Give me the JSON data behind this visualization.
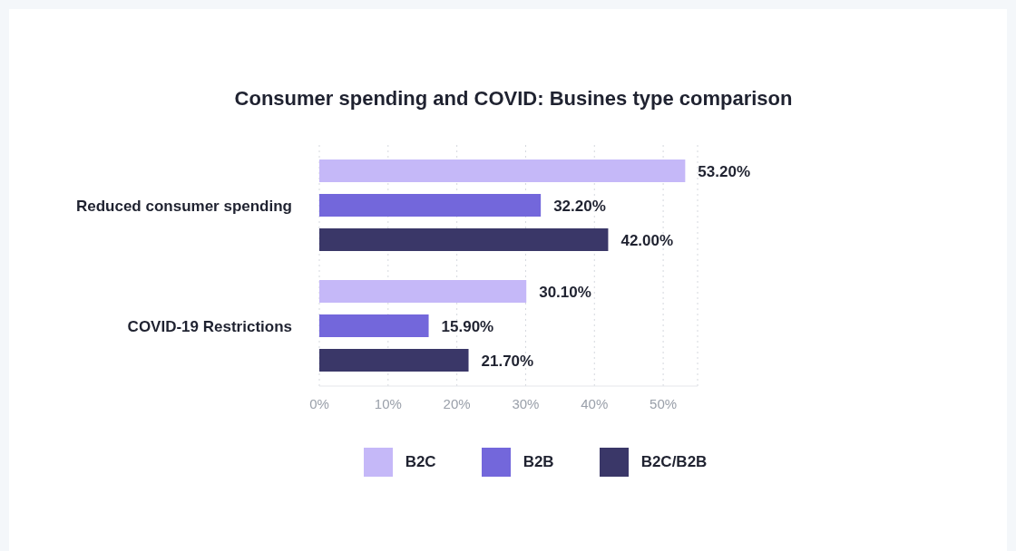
{
  "chart_data": {
    "type": "bar",
    "orientation": "horizontal",
    "title": "Consumer spending and COVID: Busines type comparison",
    "categories": [
      "Reduced consumer spending",
      "COVID-19 Restrictions"
    ],
    "series": [
      {
        "name": "B2C",
        "color": "#c5b8f8",
        "values": [
          53.2,
          30.1
        ],
        "value_labels": [
          "53.20%",
          "30.10%"
        ]
      },
      {
        "name": "B2B",
        "color": "#7367db",
        "values": [
          32.2,
          15.9
        ],
        "value_labels": [
          "32.20%",
          "15.90%"
        ]
      },
      {
        "name": "B2C/B2B",
        "color": "#3a3768",
        "values": [
          42.0,
          21.7
        ],
        "value_labels": [
          "42.00%",
          "21.70%"
        ]
      }
    ],
    "xlim": [
      0,
      55
    ],
    "xticks": [
      {
        "value": 0,
        "label": "0%"
      },
      {
        "value": 10,
        "label": "10%"
      },
      {
        "value": 20,
        "label": "20%"
      },
      {
        "value": 30,
        "label": "30%"
      },
      {
        "value": 40,
        "label": "40%"
      },
      {
        "value": 50,
        "label": "50%"
      }
    ],
    "grid": "x",
    "legend": "bottom"
  }
}
